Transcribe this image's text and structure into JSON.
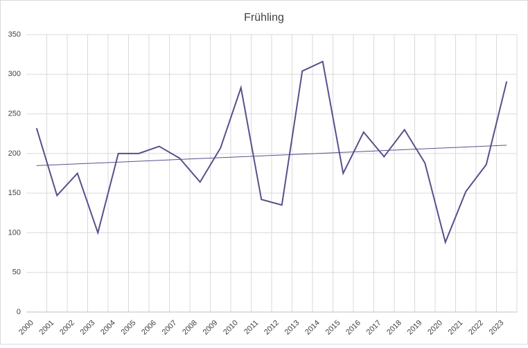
{
  "chart_data": {
    "type": "line",
    "title": "Frühling",
    "categories": [
      "2000",
      "2001",
      "2002",
      "2003",
      "2004",
      "2005",
      "2006",
      "2007",
      "2008",
      "2009",
      "2010",
      "2011",
      "2012",
      "2013",
      "2014",
      "2015",
      "2016",
      "2017",
      "2018",
      "2019",
      "2020",
      "2021",
      "2022",
      "2023"
    ],
    "series": [
      {
        "color": "#574f8a",
        "values": [
          232,
          147,
          175,
          100,
          200,
          200,
          209,
          194,
          164,
          207,
          283,
          142,
          135,
          304,
          316,
          175,
          227,
          196,
          230,
          188,
          88,
          152,
          186,
          291
        ]
      }
    ],
    "trendline": true,
    "ylim": [
      0,
      350
    ],
    "yticks": [
      0,
      50,
      100,
      150,
      200,
      250,
      300,
      350
    ],
    "grid": true
  }
}
